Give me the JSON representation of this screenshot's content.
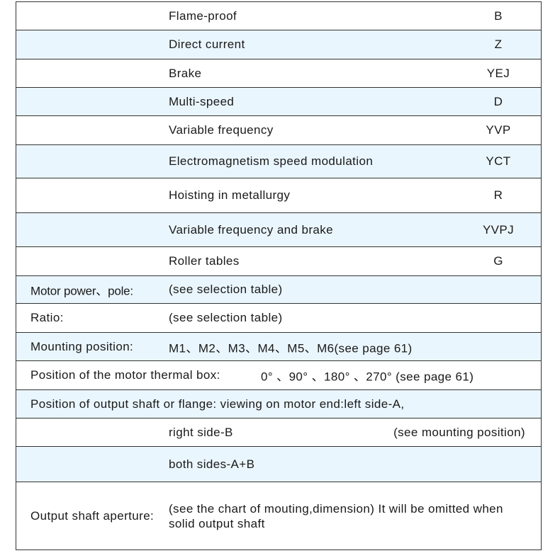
{
  "types": [
    {
      "name": "Flame-proof",
      "code": "B"
    },
    {
      "name": "Direct current",
      "code": "Z"
    },
    {
      "name": "Brake",
      "code": "YEJ"
    },
    {
      "name": "Multi-speed",
      "code": "D"
    },
    {
      "name": "Variable frequency",
      "code": "YVP"
    },
    {
      "name": "Electromagnetism speed modulation",
      "code": "YCT"
    },
    {
      "name": "Hoisting in metallurgy",
      "code": "R"
    },
    {
      "name": "Variable frequency and brake",
      "code": "YVPJ"
    },
    {
      "name": "Roller tables",
      "code": "G"
    }
  ],
  "specs": {
    "motor_power": {
      "label": "Motor power、pole:",
      "value": "(see selection table)"
    },
    "ratio": {
      "label": "Ratio:",
      "value": "(see selection table)"
    },
    "mounting": {
      "label": "Mounting position:",
      "value": "M1、M2、M3、M4、M5、M6(see  page 61)"
    },
    "thermal_box": {
      "label": "Position of the motor thermal box:",
      "value": "0°  、90°  、180°  、270°  (see  page 61)"
    },
    "output_shaft": {
      "label": "Position  of output shaft or flange:   viewing on motor end:left side-A,",
      "right": "right side-B",
      "right_note": "(see mounting position)",
      "both": "both sides-A+B"
    },
    "aperture": {
      "label": "Output shaft aperture:",
      "value": "(see  the chart of mouting,dimension) It will be omitted when solid output shaft"
    }
  },
  "colors": {
    "row_alt": "#eaf6fd",
    "border": "#333333"
  }
}
